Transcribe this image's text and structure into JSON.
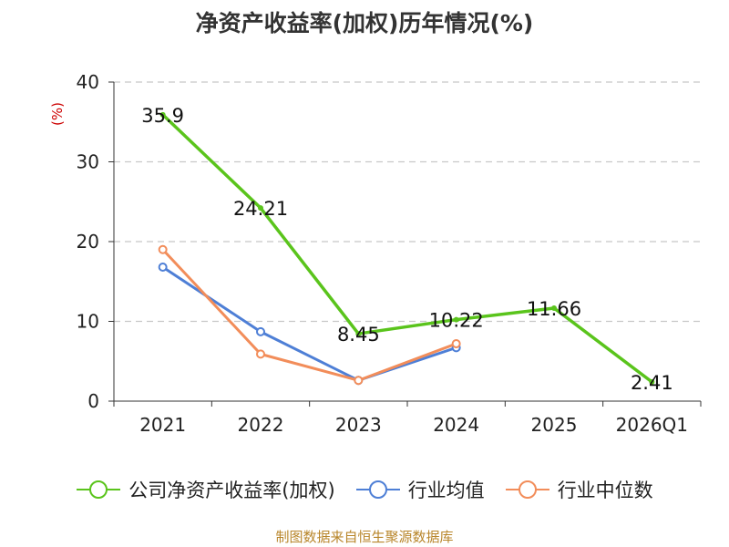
{
  "chart_data": {
    "type": "line",
    "title": "净资产收益率(加权)历年情况(%)",
    "ylabel": "(%)",
    "ylim": [
      0,
      40
    ],
    "yticks": [
      0,
      10,
      20,
      30,
      40
    ],
    "grid": true,
    "legend_position": "bottom",
    "categories": [
      "2021",
      "2022",
      "2023",
      "2024",
      "2025",
      "2026Q1"
    ],
    "series": [
      {
        "name": "公司净资产收益率(加权)",
        "color": "#5ac41c",
        "values": [
          35.9,
          24.21,
          8.45,
          10.22,
          11.66,
          2.41
        ],
        "labels": [
          "35.9",
          "24.21",
          "8.45",
          "10.22",
          "11.66",
          "2.41"
        ]
      },
      {
        "name": "行业均值",
        "color": "#4e7fd6",
        "values": [
          16.8,
          8.7,
          2.6,
          6.7,
          null,
          null
        ]
      },
      {
        "name": "行业中位数",
        "color": "#f28d5a",
        "values": [
          19.0,
          5.9,
          2.6,
          7.2,
          null,
          null
        ]
      }
    ]
  },
  "source_note": "制图数据来自恒生聚源数据库"
}
